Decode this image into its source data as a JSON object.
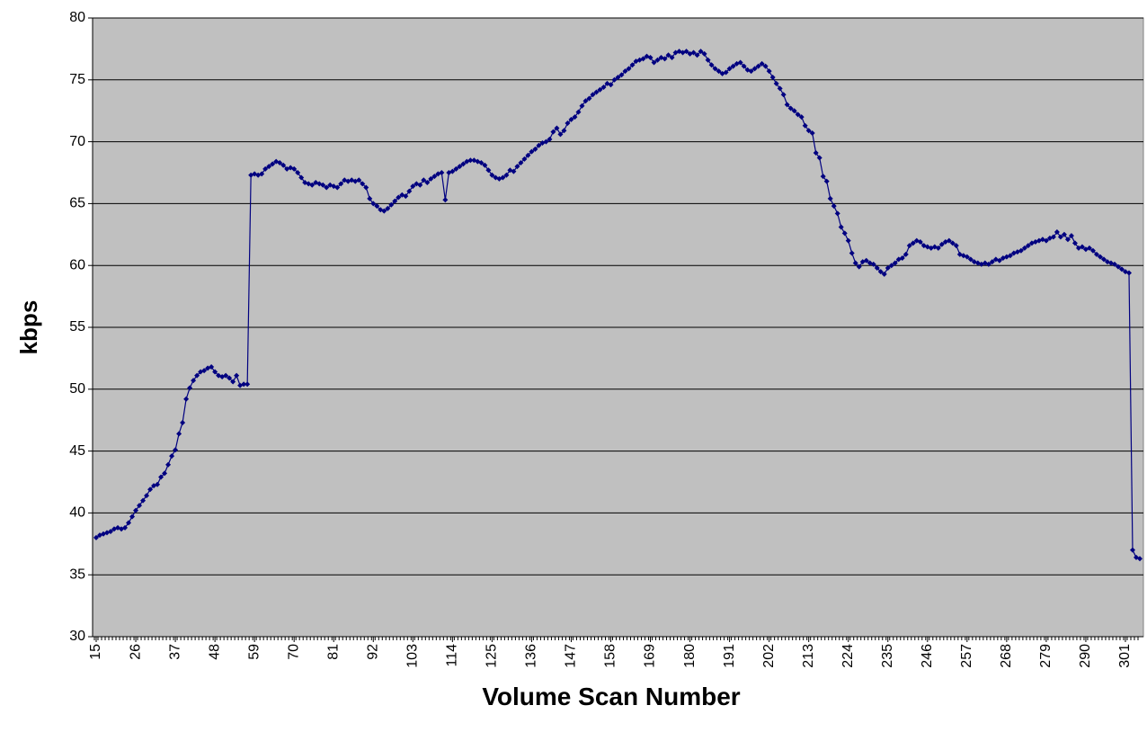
{
  "chart_data": {
    "type": "line",
    "xlabel": "Volume Scan Number",
    "ylabel": "kbps",
    "xlim": [
      14,
      306
    ],
    "ylim": [
      30,
      80
    ],
    "xticks": [
      15,
      26,
      37,
      48,
      59,
      70,
      81,
      92,
      103,
      114,
      125,
      136,
      147,
      158,
      169,
      180,
      191,
      202,
      213,
      224,
      235,
      246,
      257,
      268,
      279,
      290,
      301
    ],
    "yticks": [
      30,
      35,
      40,
      45,
      50,
      55,
      60,
      65,
      70,
      75,
      80
    ],
    "grid": true,
    "series": [
      {
        "color": "#000080",
        "x": [
          15,
          16,
          17,
          18,
          19,
          20,
          21,
          22,
          23,
          24,
          25,
          26,
          27,
          28,
          29,
          30,
          31,
          32,
          33,
          34,
          35,
          36,
          37,
          38,
          39,
          40,
          41,
          42,
          43,
          44,
          45,
          46,
          47,
          48,
          49,
          50,
          51,
          52,
          53,
          54,
          55,
          56,
          57,
          58,
          59,
          60,
          61,
          62,
          63,
          64,
          65,
          66,
          67,
          68,
          69,
          70,
          71,
          72,
          73,
          74,
          75,
          76,
          77,
          78,
          79,
          80,
          81,
          82,
          83,
          84,
          85,
          86,
          87,
          88,
          89,
          90,
          91,
          92,
          93,
          94,
          95,
          96,
          97,
          98,
          99,
          100,
          101,
          102,
          103,
          104,
          105,
          106,
          107,
          108,
          109,
          110,
          111,
          112,
          113,
          114,
          115,
          116,
          117,
          118,
          119,
          120,
          121,
          122,
          123,
          124,
          125,
          126,
          127,
          128,
          129,
          130,
          131,
          132,
          133,
          134,
          135,
          136,
          137,
          138,
          139,
          140,
          141,
          142,
          143,
          144,
          145,
          146,
          147,
          148,
          149,
          150,
          151,
          152,
          153,
          154,
          155,
          156,
          157,
          158,
          159,
          160,
          161,
          162,
          163,
          164,
          165,
          166,
          167,
          168,
          169,
          170,
          171,
          172,
          173,
          174,
          175,
          176,
          177,
          178,
          179,
          180,
          181,
          182,
          183,
          184,
          185,
          186,
          187,
          188,
          189,
          190,
          191,
          192,
          193,
          194,
          195,
          196,
          197,
          198,
          199,
          200,
          201,
          202,
          203,
          204,
          205,
          206,
          207,
          208,
          209,
          210,
          211,
          212,
          213,
          214,
          215,
          216,
          217,
          218,
          219,
          220,
          221,
          222,
          223,
          224,
          225,
          226,
          227,
          228,
          229,
          230,
          231,
          232,
          233,
          234,
          235,
          236,
          237,
          238,
          239,
          240,
          241,
          242,
          243,
          244,
          245,
          246,
          247,
          248,
          249,
          250,
          251,
          252,
          253,
          254,
          255,
          256,
          257,
          258,
          259,
          260,
          261,
          262,
          263,
          264,
          265,
          266,
          267,
          268,
          269,
          270,
          271,
          272,
          273,
          274,
          275,
          276,
          277,
          278,
          279,
          280,
          281,
          282,
          283,
          284,
          285,
          286,
          287,
          288,
          289,
          290,
          291,
          292,
          293,
          294,
          295,
          296,
          297,
          298,
          299,
          300,
          301,
          302,
          303,
          304,
          305
        ],
        "values": [
          38.0,
          38.2,
          38.3,
          38.4,
          38.5,
          38.7,
          38.8,
          38.7,
          38.8,
          39.2,
          39.7,
          40.2,
          40.6,
          41.0,
          41.4,
          41.9,
          42.2,
          42.3,
          42.9,
          43.2,
          43.9,
          44.6,
          45.1,
          46.4,
          47.3,
          49.2,
          50.1,
          50.7,
          51.1,
          51.4,
          51.5,
          51.7,
          51.8,
          51.4,
          51.1,
          51.0,
          51.1,
          50.9,
          50.6,
          51.1,
          50.3,
          50.4,
          50.4,
          67.3,
          67.4,
          67.3,
          67.4,
          67.8,
          68.0,
          68.2,
          68.4,
          68.3,
          68.1,
          67.8,
          67.9,
          67.8,
          67.5,
          67.1,
          66.7,
          66.6,
          66.5,
          66.7,
          66.6,
          66.5,
          66.3,
          66.5,
          66.4,
          66.3,
          66.6,
          66.9,
          66.8,
          66.9,
          66.8,
          66.9,
          66.6,
          66.3,
          65.4,
          65.0,
          64.8,
          64.5,
          64.4,
          64.6,
          64.9,
          65.2,
          65.5,
          65.7,
          65.6,
          66.0,
          66.4,
          66.6,
          66.5,
          66.9,
          66.7,
          67.0,
          67.2,
          67.4,
          67.5,
          65.3,
          67.5,
          67.6,
          67.8,
          68.0,
          68.2,
          68.4,
          68.5,
          68.5,
          68.4,
          68.3,
          68.1,
          67.7,
          67.3,
          67.1,
          67.0,
          67.1,
          67.3,
          67.7,
          67.6,
          68.0,
          68.3,
          68.6,
          68.9,
          69.2,
          69.4,
          69.7,
          69.9,
          70.0,
          70.2,
          70.8,
          71.1,
          70.6,
          70.9,
          71.5,
          71.8,
          72.0,
          72.4,
          72.9,
          73.3,
          73.5,
          73.8,
          74.0,
          74.2,
          74.4,
          74.7,
          74.6,
          75.0,
          75.2,
          75.4,
          75.7,
          75.9,
          76.2,
          76.5,
          76.6,
          76.7,
          76.9,
          76.8,
          76.4,
          76.6,
          76.8,
          76.7,
          77.0,
          76.8,
          77.2,
          77.3,
          77.2,
          77.3,
          77.1,
          77.2,
          77.0,
          77.3,
          77.1,
          76.6,
          76.2,
          75.9,
          75.7,
          75.5,
          75.6,
          75.9,
          76.1,
          76.3,
          76.4,
          76.1,
          75.8,
          75.7,
          75.9,
          76.1,
          76.3,
          76.1,
          75.7,
          75.2,
          74.7,
          74.3,
          73.8,
          73.0,
          72.7,
          72.5,
          72.2,
          72.0,
          71.3,
          70.9,
          70.7,
          69.1,
          68.7,
          67.2,
          66.8,
          65.4,
          64.8,
          64.2,
          63.1,
          62.6,
          62.0,
          61.0,
          60.2,
          59.9,
          60.3,
          60.4,
          60.2,
          60.1,
          59.8,
          59.5,
          59.3,
          59.8,
          60.0,
          60.2,
          60.5,
          60.6,
          60.9,
          61.6,
          61.8,
          62.0,
          61.9,
          61.6,
          61.5,
          61.4,
          61.5,
          61.4,
          61.7,
          61.9,
          62.0,
          61.8,
          61.6,
          60.9,
          60.8,
          60.7,
          60.5,
          60.3,
          60.2,
          60.1,
          60.2,
          60.1,
          60.3,
          60.5,
          60.4,
          60.6,
          60.7,
          60.8,
          61.0,
          61.1,
          61.2,
          61.4,
          61.6,
          61.8,
          61.9,
          62.0,
          62.1,
          62.0,
          62.2,
          62.3,
          62.7,
          62.3,
          62.5,
          62.1,
          62.4,
          61.8,
          61.4,
          61.5,
          61.3,
          61.4,
          61.2,
          60.9,
          60.7,
          60.5,
          60.3,
          60.2,
          60.1,
          59.9,
          59.7,
          59.5,
          59.4,
          37.0,
          36.4,
          36.3
        ]
      }
    ]
  }
}
